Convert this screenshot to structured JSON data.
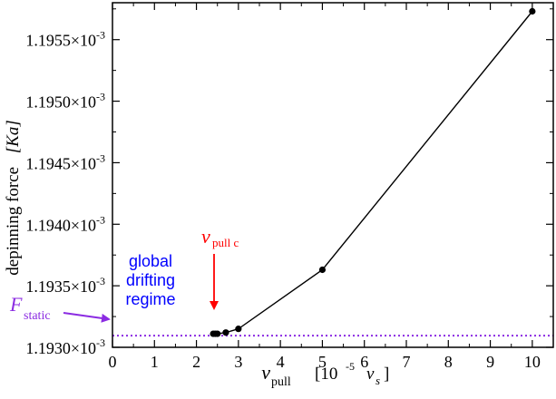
{
  "chart_data": {
    "type": "line",
    "x_axis": {
      "label_main": "v",
      "label_sub": "pull",
      "label_unit_pre": "[10",
      "label_unit_exp": "-5",
      "label_unit_var": "v",
      "label_unit_var_sub": "s",
      "label_unit_post": "]",
      "range": [
        0,
        10.5
      ],
      "ticks": [
        0,
        1,
        2,
        3,
        4,
        5,
        6,
        7,
        8,
        9,
        10
      ],
      "tick_labels": [
        "0",
        "1",
        "2",
        "3",
        "4",
        "5",
        "6",
        "7",
        "8",
        "9",
        "10"
      ]
    },
    "y_axis": {
      "label_main": "depinning force",
      "label_unit": "[Ka]",
      "range": [
        0.001193,
        0.0011958
      ],
      "ticks": [
        0.001193,
        0.0011935,
        0.001194,
        0.0011945,
        0.001195,
        0.0011955
      ],
      "tick_mantissas": [
        "1.1930",
        "1.1935",
        "1.1940",
        "1.1945",
        "1.1950",
        "1.1955"
      ],
      "tick_times": "×10",
      "tick_exponent": "-3"
    },
    "series": [
      {
        "x": [
          2.4,
          2.45,
          2.5,
          2.7,
          3.0,
          5.0,
          10.0
        ],
        "y": [
          0.00119311,
          0.00119311,
          0.00119311,
          0.00119312,
          0.00119315,
          0.00119363,
          0.00119573
        ],
        "color": "#000000",
        "marker": "circle"
      }
    ],
    "reference_line": {
      "y": 0.001193095,
      "style": "dotted",
      "color": "#8b2be2",
      "label_main": "F",
      "label_sub": "static"
    },
    "annotations": {
      "vpull_c": {
        "x": 2.4,
        "main": "v",
        "sub": "pull c",
        "color": "#ff0000"
      },
      "regime": {
        "lines": [
          "global",
          "drifting",
          "regime"
        ],
        "color": "#0000ff"
      }
    }
  }
}
